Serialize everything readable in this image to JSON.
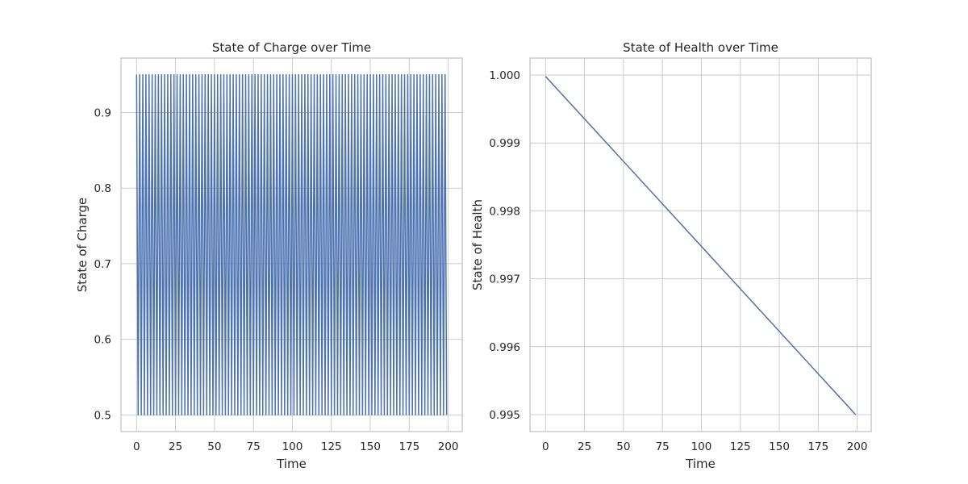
{
  "chart_data": [
    {
      "type": "line",
      "title": "State of Charge over Time",
      "xlabel": "Time",
      "ylabel": "State of Charge",
      "xlim": [
        -10,
        209
      ],
      "ylim": [
        0.478,
        0.972
      ],
      "xticks": [
        0,
        25,
        50,
        75,
        100,
        125,
        150,
        175,
        200
      ],
      "xtick_labels": [
        "0",
        "25",
        "50",
        "75",
        "100",
        "125",
        "150",
        "175",
        "200"
      ],
      "yticks": [
        0.5,
        0.6,
        0.7,
        0.8,
        0.9
      ],
      "ytick_labels": [
        "0.5",
        "0.6",
        "0.7",
        "0.8",
        "0.9"
      ],
      "grid": true,
      "color": "#4c72b0",
      "series": [
        {
          "x_start": 0,
          "x_end": 199,
          "pattern": "alternating",
          "high": 0.95,
          "low": 0.5
        }
      ]
    },
    {
      "type": "line",
      "title": "State of Health over Time",
      "xlabel": "Time",
      "ylabel": "State of Health",
      "xlim": [
        -10,
        209
      ],
      "ylim": [
        0.99475,
        1.00025
      ],
      "xticks": [
        0,
        25,
        50,
        75,
        100,
        125,
        150,
        175,
        200
      ],
      "xtick_labels": [
        "0",
        "25",
        "50",
        "75",
        "100",
        "125",
        "150",
        "175",
        "200"
      ],
      "yticks": [
        0.995,
        0.996,
        0.997,
        0.998,
        0.999,
        1.0
      ],
      "ytick_labels": [
        "0.995",
        "0.996",
        "0.997",
        "0.998",
        "0.999",
        "1.000"
      ],
      "grid": true,
      "color": "#4c72b0",
      "series": [
        {
          "x": [
            0,
            199
          ],
          "y": [
            0.99998,
            0.995
          ]
        }
      ]
    }
  ]
}
